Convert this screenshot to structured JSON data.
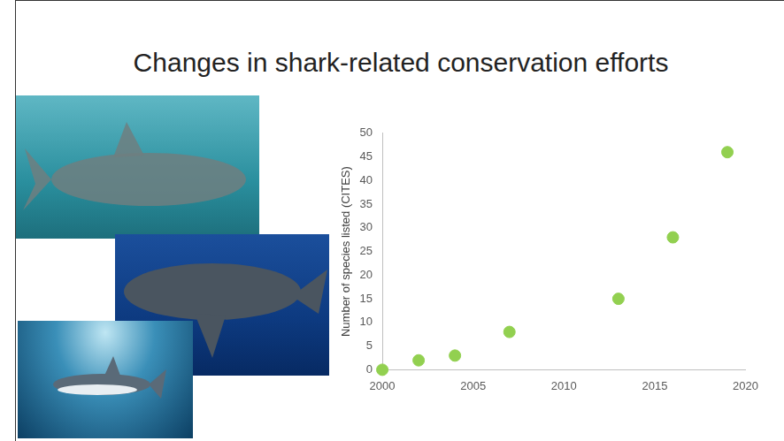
{
  "chart_data": {
    "type": "scatter",
    "title": "Changes in shark-related conservation efforts",
    "x": [
      2000,
      2002,
      2004,
      2007,
      2013,
      2016,
      2019
    ],
    "values": [
      0,
      2,
      3,
      8,
      15,
      28,
      46
    ],
    "color": "#92d050",
    "marker": "circle",
    "ylabel": "Number of species listed (CITES)",
    "xlim": [
      2000,
      2020
    ],
    "xticks": [
      2000,
      2005,
      2010,
      2015,
      2020
    ],
    "ylim": [
      0,
      50
    ],
    "yticks": [
      0,
      5,
      10,
      15,
      20,
      25,
      30,
      35,
      40,
      45,
      50
    ],
    "grid": false
  }
}
